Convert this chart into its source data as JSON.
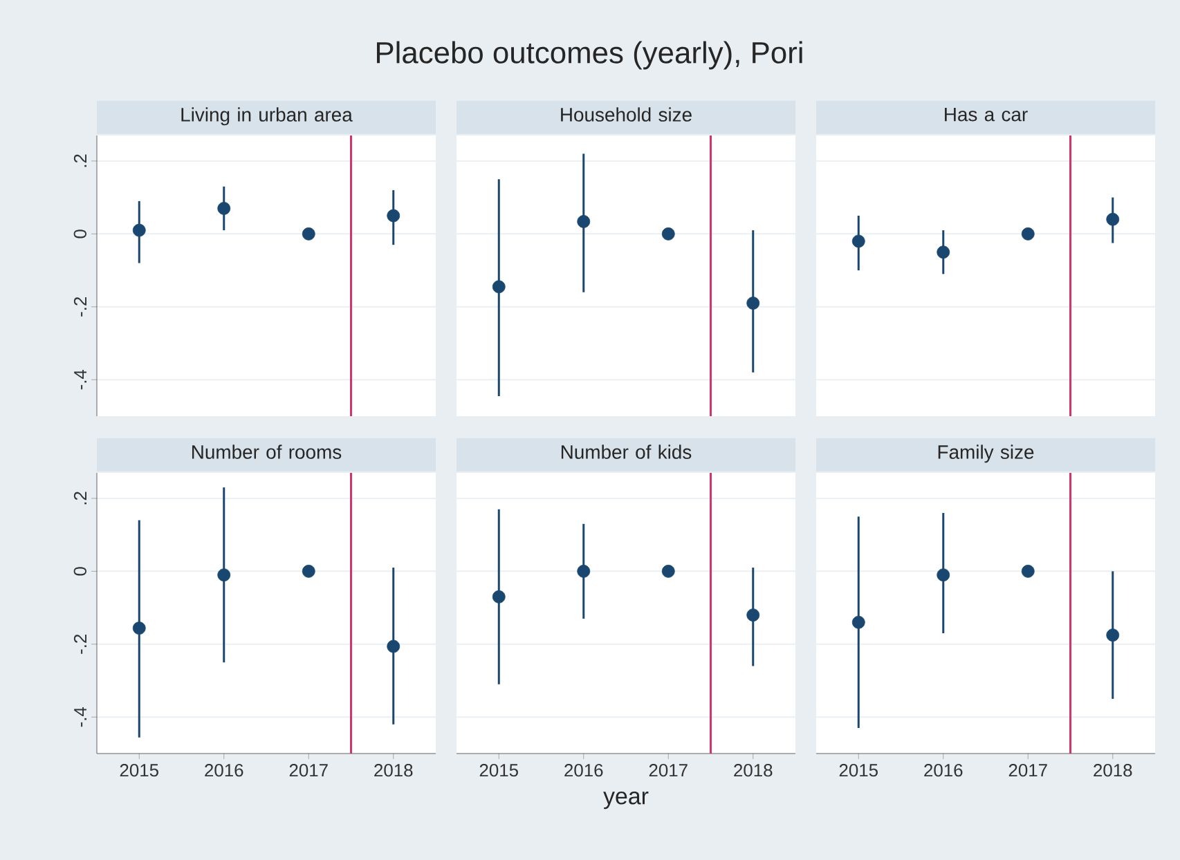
{
  "chart_data": [
    {
      "type": "scatter",
      "title": "Living in urban area",
      "annotations": [
        "Placebo outcomes (yearly), Pori"
      ],
      "x": [
        2015,
        2016,
        2017,
        2018
      ],
      "series": [
        {
          "color": "#1a476f",
          "values": [
            0.01,
            0.07,
            0,
            0.05
          ],
          "errors": [
            [
              -0.08,
              0.09
            ],
            [
              0.01,
              0.13
            ],
            null,
            [
              -0.03,
              0.12
            ]
          ]
        }
      ],
      "xlim": [
        2014.5,
        2018.5
      ],
      "ylim": [
        -0.5,
        0.27
      ],
      "xticks": [
        2015,
        2016,
        2017,
        2018
      ],
      "yticks": [
        {
          "value": -0.4,
          "label": "-.4"
        },
        {
          "value": -0.2,
          "label": "-.2"
        },
        {
          "value": 0,
          "label": "0"
        },
        {
          "value": 0.2,
          "label": ".2"
        }
      ],
      "grid": "y",
      "marker": "circle",
      "ref_lines": [
        {
          "axis": "x",
          "value": 2017.5,
          "color": "#d6336c"
        }
      ],
      "tick_labels": "y"
    },
    {
      "type": "scatter",
      "title": "Household size",
      "x": [
        2015,
        2016,
        2017,
        2018
      ],
      "series": [
        {
          "color": "#1a476f",
          "values": [
            -0.145,
            0.034,
            0,
            -0.19
          ],
          "errors": [
            [
              -0.445,
              0.15
            ],
            [
              -0.16,
              0.22
            ],
            null,
            [
              -0.38,
              0.01
            ]
          ]
        }
      ],
      "xlim": [
        2014.5,
        2018.5
      ],
      "ylim": [
        -0.5,
        0.27
      ],
      "xticks": [
        2015,
        2016,
        2017,
        2018
      ],
      "yticks": [
        {
          "value": -0.4,
          "label": null
        },
        {
          "value": -0.2,
          "label": null
        },
        {
          "value": 0,
          "label": null
        },
        {
          "value": 0.2,
          "label": null
        }
      ],
      "grid": "y",
      "marker": "circle",
      "ref_lines": [
        {
          "axis": "x",
          "value": 2017.5,
          "color": "#d6336c"
        }
      ],
      "tick_labels": false
    },
    {
      "type": "scatter",
      "title": "Has a car",
      "x": [
        2015,
        2016,
        2017,
        2018
      ],
      "series": [
        {
          "color": "#1a476f",
          "values": [
            -0.02,
            -0.05,
            0,
            0.04
          ],
          "errors": [
            [
              -0.1,
              0.05
            ],
            [
              -0.11,
              0.01
            ],
            null,
            [
              -0.025,
              0.1
            ]
          ]
        }
      ],
      "xlim": [
        2014.5,
        2018.5
      ],
      "ylim": [
        -0.5,
        0.27
      ],
      "xticks": [
        2015,
        2016,
        2017,
        2018
      ],
      "yticks": [
        {
          "value": -0.4,
          "label": null
        },
        {
          "value": -0.2,
          "label": null
        },
        {
          "value": 0,
          "label": null
        },
        {
          "value": 0.2,
          "label": null
        }
      ],
      "grid": "y",
      "marker": "circle",
      "ref_lines": [
        {
          "axis": "x",
          "value": 2017.5,
          "color": "#d6336c"
        }
      ],
      "tick_labels": false
    },
    {
      "type": "scatter",
      "title": "Number of rooms",
      "x": [
        2015,
        2016,
        2017,
        2018
      ],
      "series": [
        {
          "color": "#1a476f",
          "values": [
            -0.156,
            -0.01,
            0,
            -0.206
          ],
          "errors": [
            [
              -0.456,
              0.14
            ],
            [
              -0.25,
              0.23
            ],
            null,
            [
              -0.42,
              0.01
            ]
          ]
        }
      ],
      "xlim": [
        2014.5,
        2018.5
      ],
      "ylim": [
        -0.5,
        0.27
      ],
      "xticks": [
        2015,
        2016,
        2017,
        2018
      ],
      "yticks": [
        {
          "value": -0.4,
          "label": "-.4"
        },
        {
          "value": -0.2,
          "label": "-.2"
        },
        {
          "value": 0,
          "label": "0"
        },
        {
          "value": 0.2,
          "label": ".2"
        }
      ],
      "grid": "y",
      "marker": "circle",
      "ref_lines": [
        {
          "axis": "x",
          "value": 2017.5,
          "color": "#d6336c"
        }
      ]
    },
    {
      "type": "scatter",
      "title": "Number of kids",
      "xlabel": "year",
      "x": [
        2015,
        2016,
        2017,
        2018
      ],
      "series": [
        {
          "color": "#1a476f",
          "values": [
            -0.07,
            0,
            0,
            -0.12
          ],
          "errors": [
            [
              -0.31,
              0.17
            ],
            [
              -0.13,
              0.13
            ],
            null,
            [
              -0.26,
              0.01
            ]
          ]
        }
      ],
      "xlim": [
        2014.5,
        2018.5
      ],
      "ylim": [
        -0.5,
        0.27
      ],
      "xticks": [
        2015,
        2016,
        2017,
        2018
      ],
      "yticks": [
        {
          "value": -0.4,
          "label": null
        },
        {
          "value": -0.2,
          "label": null
        },
        {
          "value": 0,
          "label": null
        },
        {
          "value": 0.2,
          "label": null
        }
      ],
      "grid": "y",
      "marker": "circle",
      "ref_lines": [
        {
          "axis": "x",
          "value": 2017.5,
          "color": "#d6336c"
        }
      ],
      "tick_labels": "x"
    },
    {
      "type": "scatter",
      "title": "Family size",
      "x": [
        2015,
        2016,
        2017,
        2018
      ],
      "series": [
        {
          "color": "#1a476f",
          "values": [
            -0.14,
            -0.01,
            0,
            -0.175
          ],
          "errors": [
            [
              -0.43,
              0.15
            ],
            [
              -0.17,
              0.16
            ],
            null,
            [
              -0.35,
              0.0
            ]
          ]
        }
      ],
      "xlim": [
        2014.5,
        2018.5
      ],
      "ylim": [
        -0.5,
        0.27
      ],
      "xticks": [
        2015,
        2016,
        2017,
        2018
      ],
      "yticks": [
        {
          "value": -0.4,
          "label": null
        },
        {
          "value": -0.2,
          "label": null
        },
        {
          "value": 0,
          "label": null
        },
        {
          "value": 0.2,
          "label": null
        }
      ],
      "grid": "y",
      "marker": "circle",
      "ref_lines": [
        {
          "axis": "x",
          "value": 2017.5,
          "color": "#d6336c"
        }
      ],
      "tick_labels": "x"
    }
  ]
}
